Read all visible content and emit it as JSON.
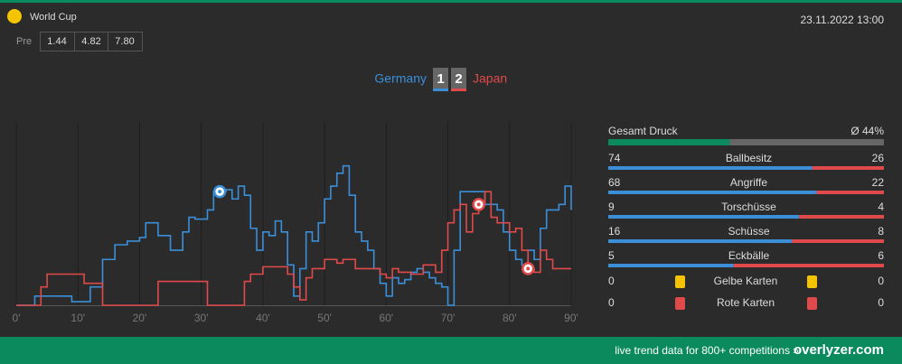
{
  "header": {
    "competition": "World Cup",
    "date": "23.11.2022 13:00",
    "odds_label": "Pre",
    "odds": [
      "1.44",
      "4.82",
      "7.80"
    ],
    "score": {
      "home": 1,
      "away": 2
    }
  },
  "chart_data": {
    "type": "line",
    "step": true,
    "series": [
      {
        "name": "Germany",
        "color": "#3b8fd9",
        "x": [
          0,
          3,
          6,
          9,
          12,
          14,
          16,
          18,
          20,
          21,
          23,
          25,
          27,
          28,
          29,
          31,
          32,
          34,
          35,
          36,
          37,
          38,
          39,
          40,
          41,
          42,
          43,
          44,
          45,
          46,
          47,
          48,
          49,
          50,
          51,
          52,
          53,
          54,
          55,
          56,
          57,
          58,
          59,
          60,
          61,
          62,
          63,
          64,
          65,
          66,
          67,
          68,
          69,
          70,
          71,
          72,
          75,
          76,
          78,
          79,
          80,
          81,
          82,
          83,
          84,
          85,
          86,
          88,
          89,
          90
        ],
        "values": [
          0,
          5,
          5,
          2,
          10,
          25,
          33,
          35,
          37,
          45,
          38,
          30,
          40,
          48,
          47,
          52,
          62,
          63,
          58,
          65,
          60,
          42,
          30,
          40,
          38,
          46,
          40,
          22,
          5,
          20,
          40,
          35,
          45,
          58,
          65,
          72,
          76,
          60,
          40,
          35,
          30,
          20,
          12,
          5,
          15,
          12,
          14,
          18,
          20,
          18,
          15,
          12,
          10,
          0,
          30,
          62,
          62,
          55,
          52,
          40,
          30,
          25,
          22,
          30,
          25,
          42,
          52,
          55,
          65,
          52
        ]
      },
      {
        "name": "Japan",
        "color": "#e04a4a",
        "x": [
          0,
          4,
          5,
          10,
          11,
          14,
          22,
          23,
          30,
          31,
          36,
          37,
          38,
          40,
          43,
          44,
          45,
          46,
          47,
          48,
          50,
          52,
          53,
          55,
          58,
          59,
          60,
          61,
          62,
          64,
          66,
          68,
          69,
          70,
          71,
          72,
          73,
          74,
          75,
          76,
          77,
          78,
          80,
          81,
          82,
          83,
          84,
          85,
          86,
          87,
          90
        ],
        "values": [
          0,
          10,
          17,
          17,
          12,
          0,
          0,
          13,
          13,
          0,
          0,
          13,
          17,
          21,
          21,
          17,
          10,
          3,
          15,
          20,
          25,
          23,
          25,
          20,
          20,
          17,
          15,
          20,
          18,
          17,
          22,
          18,
          30,
          45,
          52,
          55,
          40,
          50,
          55,
          62,
          48,
          45,
          40,
          42,
          30,
          20,
          18,
          30,
          25,
          20,
          20
        ]
      }
    ],
    "goals": [
      {
        "team": 0,
        "minute": 33
      },
      {
        "team": 1,
        "minute": 75
      },
      {
        "team": 1,
        "minute": 83
      }
    ],
    "xlim": [
      0,
      90
    ],
    "ylim": [
      0,
      100
    ],
    "xticks": [
      {
        "value": 0,
        "label": "0'"
      },
      {
        "value": 10,
        "label": "10'"
      },
      {
        "value": 20,
        "label": "20'"
      },
      {
        "value": 30,
        "label": "30'"
      },
      {
        "value": 40,
        "label": "40'"
      },
      {
        "value": 50,
        "label": "50'"
      },
      {
        "value": 60,
        "label": "60'"
      },
      {
        "value": 70,
        "label": "70'"
      },
      {
        "value": 80,
        "label": "80'"
      },
      {
        "value": 90,
        "label": "90'"
      }
    ],
    "grid": true
  },
  "stats": {
    "pressure": {
      "label": "Gesamt Druck",
      "avg_label": "Ø 44%",
      "value": 44
    },
    "rows": [
      {
        "label": "Ballbesitz",
        "home": 74,
        "away": 26
      },
      {
        "label": "Angriffe",
        "home": 68,
        "away": 22
      },
      {
        "label": "Torschüsse",
        "home": 9,
        "away": 4
      },
      {
        "label": "Schüsse",
        "home": 16,
        "away": 8
      },
      {
        "label": "Eckbälle",
        "home": 5,
        "away": 6
      }
    ],
    "cards": [
      {
        "label": "Gelbe Karten",
        "home": 0,
        "away": 0,
        "color": "#f5c400"
      },
      {
        "label": "Rote Karten",
        "home": 0,
        "away": 0,
        "color": "#e04a4a"
      }
    ]
  },
  "footer": {
    "tagline": "live trend data for 800+ competitions »",
    "brand": "overlyzer.com"
  }
}
